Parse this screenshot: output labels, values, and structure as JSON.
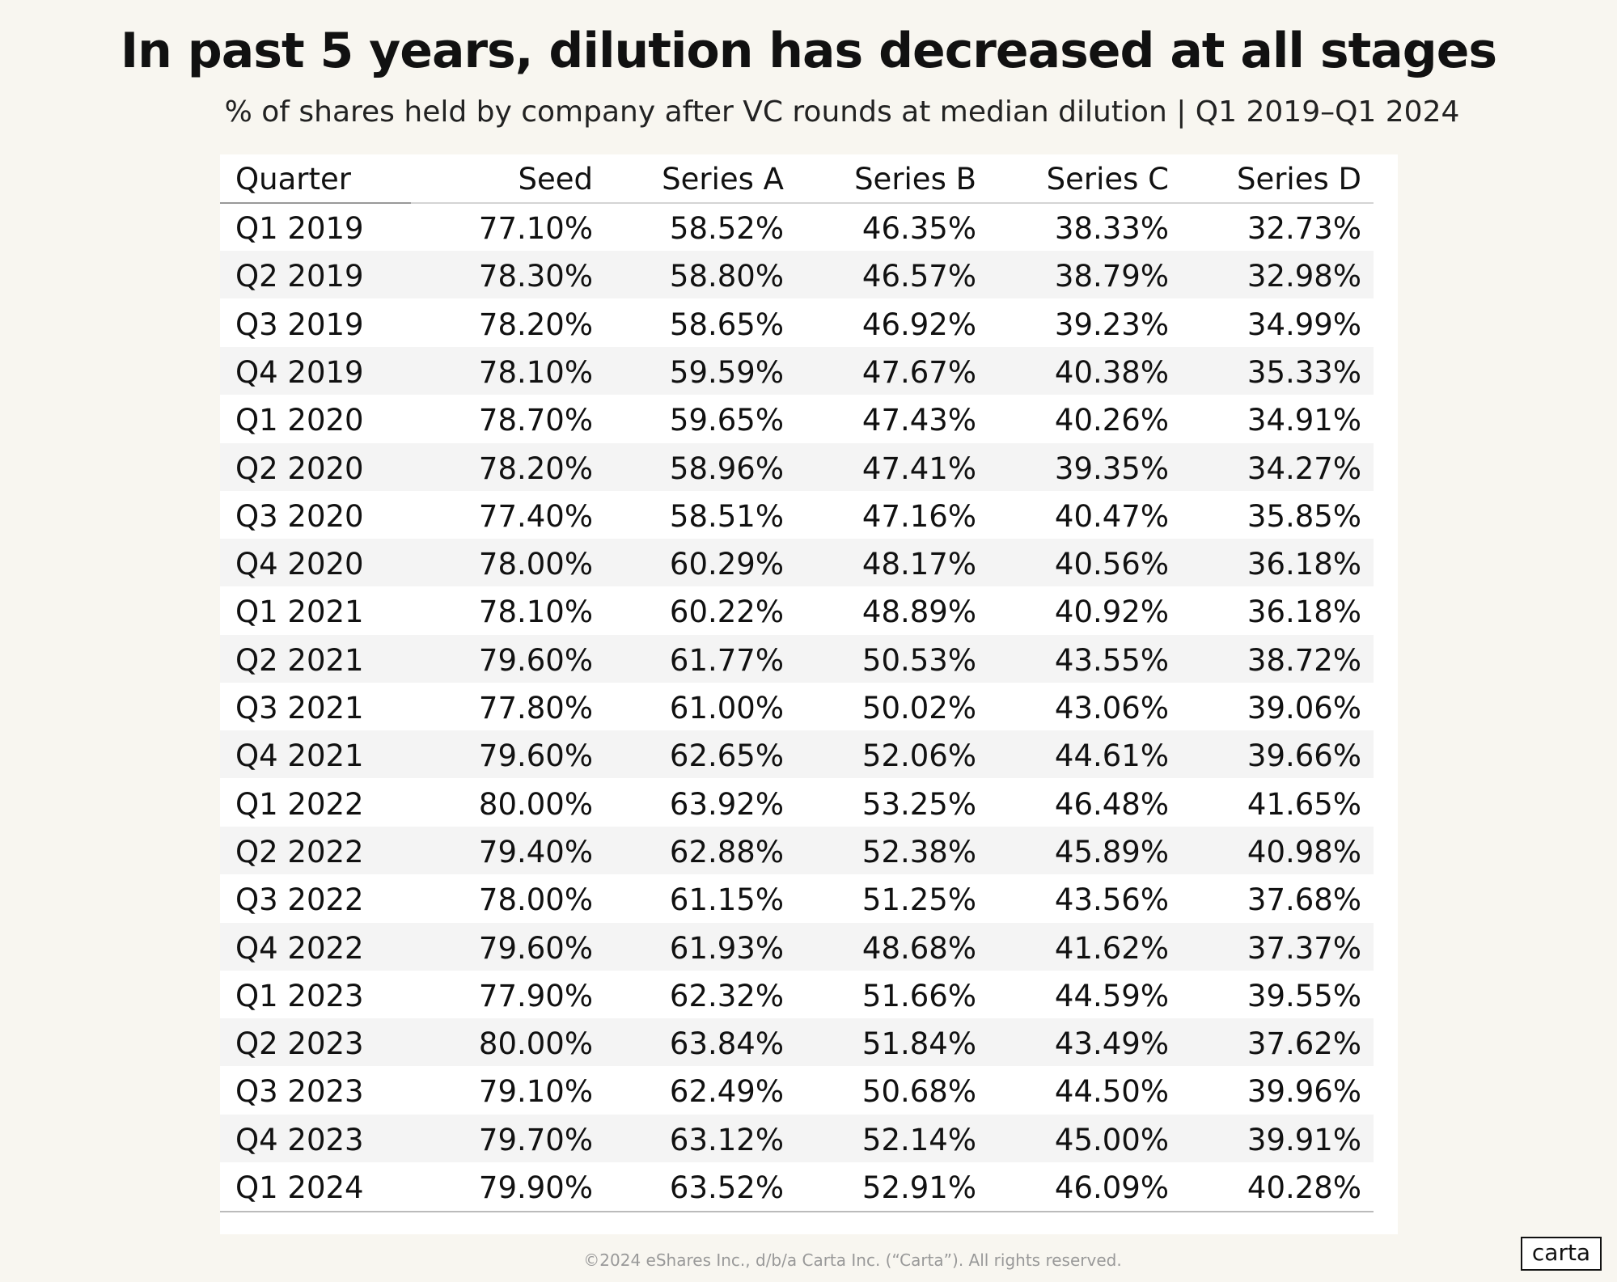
{
  "header": {
    "title": "In past 5 years, dilution has decreased at all stages",
    "subtitle": "% of shares held by company after VC rounds at median dilution | Q1 2019–Q1 2024"
  },
  "table": {
    "columns": [
      "Quarter",
      "Seed",
      "Series A",
      "Series B",
      "Series C",
      "Series D"
    ],
    "rows": [
      [
        "Q1 2019",
        "77.10%",
        "58.52%",
        "46.35%",
        "38.33%",
        "32.73%"
      ],
      [
        "Q2 2019",
        "78.30%",
        "58.80%",
        "46.57%",
        "38.79%",
        "32.98%"
      ],
      [
        "Q3 2019",
        "78.20%",
        "58.65%",
        "46.92%",
        "39.23%",
        "34.99%"
      ],
      [
        "Q4 2019",
        "78.10%",
        "59.59%",
        "47.67%",
        "40.38%",
        "35.33%"
      ],
      [
        "Q1 2020",
        "78.70%",
        "59.65%",
        "47.43%",
        "40.26%",
        "34.91%"
      ],
      [
        "Q2 2020",
        "78.20%",
        "58.96%",
        "47.41%",
        "39.35%",
        "34.27%"
      ],
      [
        "Q3 2020",
        "77.40%",
        "58.51%",
        "47.16%",
        "40.47%",
        "35.85%"
      ],
      [
        "Q4 2020",
        "78.00%",
        "60.29%",
        "48.17%",
        "40.56%",
        "36.18%"
      ],
      [
        "Q1 2021",
        "78.10%",
        "60.22%",
        "48.89%",
        "40.92%",
        "36.18%"
      ],
      [
        "Q2 2021",
        "79.60%",
        "61.77%",
        "50.53%",
        "43.55%",
        "38.72%"
      ],
      [
        "Q3 2021",
        "77.80%",
        "61.00%",
        "50.02%",
        "43.06%",
        "39.06%"
      ],
      [
        "Q4 2021",
        "79.60%",
        "62.65%",
        "52.06%",
        "44.61%",
        "39.66%"
      ],
      [
        "Q1 2022",
        "80.00%",
        "63.92%",
        "53.25%",
        "46.48%",
        "41.65%"
      ],
      [
        "Q2 2022",
        "79.40%",
        "62.88%",
        "52.38%",
        "45.89%",
        "40.98%"
      ],
      [
        "Q3 2022",
        "78.00%",
        "61.15%",
        "51.25%",
        "43.56%",
        "37.68%"
      ],
      [
        "Q4 2022",
        "79.60%",
        "61.93%",
        "48.68%",
        "41.62%",
        "37.37%"
      ],
      [
        "Q1 2023",
        "77.90%",
        "62.32%",
        "51.66%",
        "44.59%",
        "39.55%"
      ],
      [
        "Q2 2023",
        "80.00%",
        "63.84%",
        "51.84%",
        "43.49%",
        "37.62%"
      ],
      [
        "Q3 2023",
        "79.10%",
        "62.49%",
        "50.68%",
        "44.50%",
        "39.96%"
      ],
      [
        "Q4 2023",
        "79.70%",
        "63.12%",
        "52.14%",
        "45.00%",
        "39.91%"
      ],
      [
        "Q1 2024",
        "79.90%",
        "63.52%",
        "52.91%",
        "46.09%",
        "40.28%"
      ]
    ]
  },
  "footer": {
    "copyright": "©2024 eShares Inc., d/b/a Carta Inc. (“Carta”). All rights reserved.",
    "logo": "carta"
  }
}
